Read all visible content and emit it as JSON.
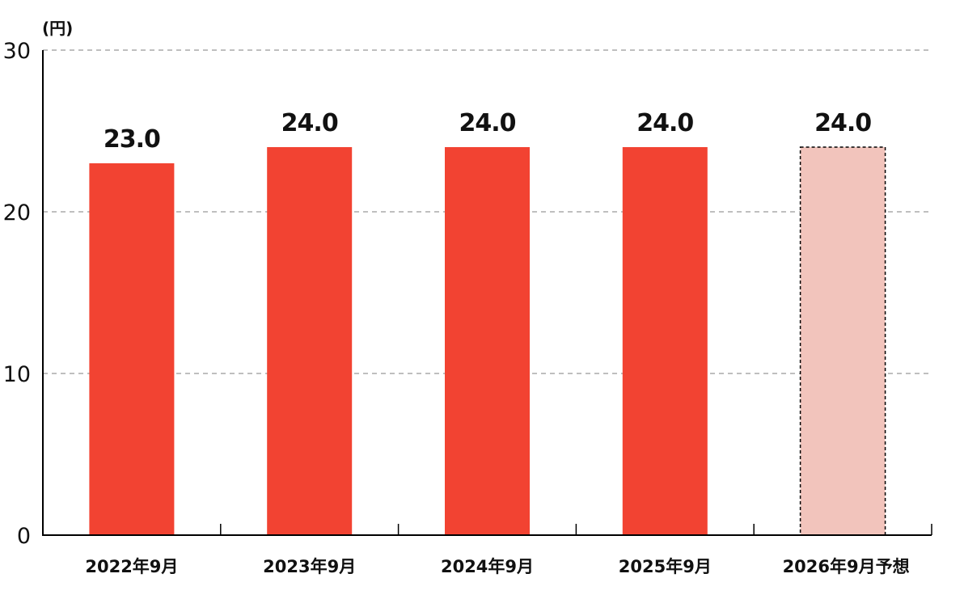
{
  "chart_data": {
    "type": "bar",
    "unit_label": "(円)",
    "categories": [
      "2022年9月",
      "2023年9月",
      "2024年9月",
      "2025年9月",
      "2026年9月予想"
    ],
    "values": [
      23.0,
      24.0,
      24.0,
      24.0,
      24.0
    ],
    "data_labels": [
      "23.0",
      "24.0",
      "24.0",
      "24.0",
      "24.0"
    ],
    "forecast": [
      false,
      false,
      false,
      false,
      true
    ],
    "ylim": [
      0,
      30
    ],
    "yticks": [
      0,
      10,
      20,
      30
    ],
    "grid": true,
    "colors": {
      "actual": "#F24332",
      "forecast": "#F2C4BC",
      "grid": "#999999",
      "axis": "#000000"
    }
  }
}
